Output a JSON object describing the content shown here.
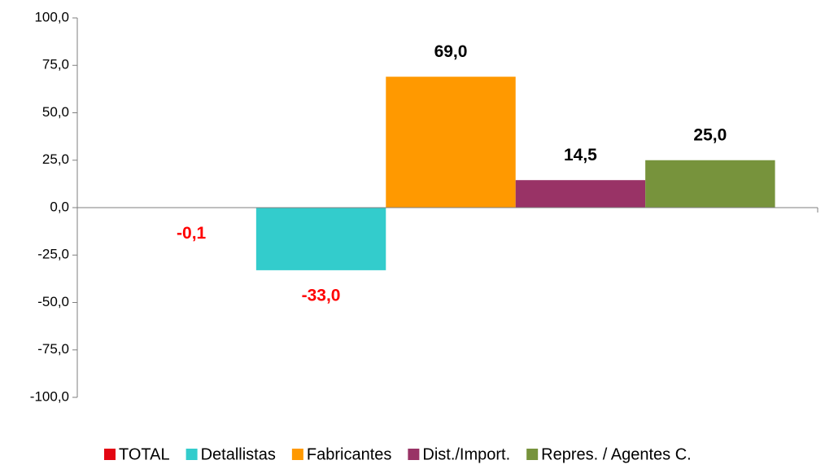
{
  "chart_data": {
    "type": "bar",
    "categories": [
      null
    ],
    "series": [
      {
        "name": "TOTAL",
        "color": "#e30613",
        "values": [
          -0.1
        ],
        "value_labels": [
          "-0,1"
        ]
      },
      {
        "name": "Detallistas",
        "color": "#33cccc",
        "values": [
          -33.0
        ],
        "value_labels": [
          "-33,0"
        ]
      },
      {
        "name": "Fabricantes",
        "color": "#ff9900",
        "values": [
          69.0
        ],
        "value_labels": [
          "69,0"
        ]
      },
      {
        "name": "Dist./Import.",
        "color": "#993366",
        "values": [
          14.5
        ],
        "value_labels": [
          "14,5"
        ]
      },
      {
        "name": "Repres. / Agentes C.",
        "color": "#77933c",
        "values": [
          25.0
        ],
        "value_labels": [
          "25,0"
        ]
      }
    ],
    "ylim": [
      -100,
      100
    ],
    "yticks": [
      {
        "value": -100,
        "label": "-100,0"
      },
      {
        "value": -75,
        "label": "-75,0"
      },
      {
        "value": -50,
        "label": "-50,0"
      },
      {
        "value": -25,
        "label": "-25,0"
      },
      {
        "value": 0,
        "label": "0,0"
      },
      {
        "value": 25,
        "label": "25,0"
      },
      {
        "value": 50,
        "label": "50,0"
      },
      {
        "value": 75,
        "label": "75,0"
      },
      {
        "value": 100,
        "label": "100,0"
      }
    ],
    "grid": false,
    "legend": "bottom"
  }
}
